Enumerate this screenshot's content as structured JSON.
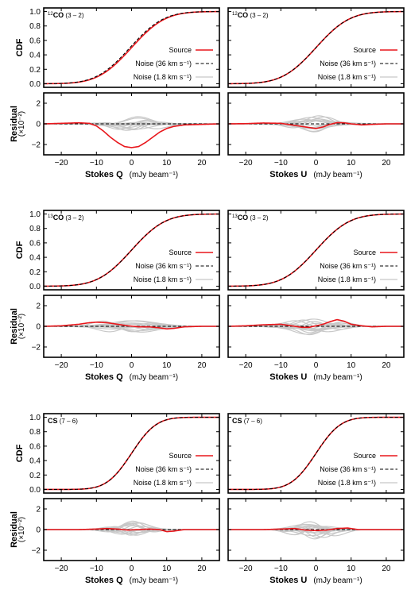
{
  "colors": {
    "source": "#e8161b",
    "noise36": "#000000",
    "noise18": "#c8c8c8"
  },
  "chart_data": [
    {
      "type": "line",
      "row": 0,
      "species_iso": "12",
      "species_name": "CO",
      "transition": "(3 – 2)",
      "ylabel_cdf": "CDF",
      "ylabel_residual": "Residual",
      "residual_unit": "(×10⁻²)",
      "legend": [
        "Source",
        "Noise (36 km s⁻¹)",
        "Noise (1.8 km s⁻¹)"
      ],
      "legend_position": "right-middle",
      "cdf_ylim": [
        -0.05,
        1.05
      ],
      "cdf_yticks": [
        "0.0",
        "0.2",
        "0.4",
        "0.6",
        "0.8",
        "1.0"
      ],
      "residual_ylim": [
        -3,
        3
      ],
      "residual_yticks": [
        "−2",
        "0",
        "2"
      ],
      "xlim": [
        -25,
        25
      ],
      "xticks": [
        "−20",
        "−10",
        "0",
        "10",
        "20"
      ],
      "panels": [
        {
          "xlabel_stokes": "Stokes Q",
          "xlabel_unit": "(mJy beam⁻¹)",
          "cdf_sigma_mJy": 7.5,
          "residual_source_x": [
            -25,
            -20,
            -15,
            -12,
            -10,
            -8,
            -6,
            -4,
            -2,
            0,
            2,
            4,
            6,
            8,
            10,
            12,
            15,
            20,
            25
          ],
          "residual_source_y": [
            0,
            0.05,
            0.1,
            0.05,
            -0.2,
            -0.7,
            -1.3,
            -1.8,
            -2.2,
            -2.3,
            -2.2,
            -1.8,
            -1.3,
            -0.8,
            -0.45,
            -0.25,
            -0.1,
            -0.05,
            0
          ]
        },
        {
          "xlabel_stokes": "Stokes U",
          "xlabel_unit": "(mJy beam⁻¹)",
          "cdf_sigma_mJy": 7.5,
          "residual_source_x": [
            -25,
            -20,
            -15,
            -10,
            -6,
            -3,
            0,
            2,
            4,
            6,
            8,
            10,
            13,
            16,
            20,
            25
          ],
          "residual_source_y": [
            0,
            0.02,
            0.08,
            0.05,
            -0.15,
            -0.3,
            -0.45,
            -0.3,
            -0.05,
            0.12,
            0.1,
            0,
            -0.1,
            -0.05,
            0,
            0
          ]
        }
      ]
    },
    {
      "type": "line",
      "row": 1,
      "species_iso": "13",
      "species_name": "CO",
      "transition": "(3 – 2)",
      "ylabel_cdf": "CDF",
      "ylabel_residual": "Residual",
      "residual_unit": "(×10⁻²)",
      "legend": [
        "Source",
        "Noise (36 km s⁻¹)",
        "Noise (1.8 km s⁻¹)"
      ],
      "legend_position": "right-middle",
      "cdf_ylim": [
        -0.05,
        1.05
      ],
      "cdf_yticks": [
        "0.0",
        "0.2",
        "0.4",
        "0.6",
        "0.8",
        "1.0"
      ],
      "residual_ylim": [
        -3,
        3
      ],
      "residual_yticks": [
        "−2",
        "0",
        "2"
      ],
      "xlim": [
        -25,
        25
      ],
      "xticks": [
        "−20",
        "−10",
        "0",
        "10",
        "20"
      ],
      "panels": [
        {
          "xlabel_stokes": "Stokes Q",
          "xlabel_unit": "(mJy beam⁻¹)",
          "cdf_sigma_mJy": 7.5,
          "residual_source_x": [
            -25,
            -20,
            -15,
            -12,
            -10,
            -7,
            -4,
            -1,
            2,
            5,
            8,
            10,
            12,
            15,
            20,
            25
          ],
          "residual_source_y": [
            0,
            0.05,
            0.2,
            0.35,
            0.4,
            0.35,
            0.2,
            0.05,
            -0.05,
            -0.05,
            -0.15,
            -0.25,
            -0.2,
            -0.05,
            0,
            0
          ]
        },
        {
          "xlabel_stokes": "Stokes U",
          "xlabel_unit": "(mJy beam⁻¹)",
          "cdf_sigma_mJy": 7.5,
          "residual_source_x": [
            -25,
            -20,
            -15,
            -10,
            -7,
            -4,
            -2,
            0,
            2,
            4,
            6,
            8,
            10,
            13,
            16,
            20,
            25
          ],
          "residual_source_y": [
            0,
            0.05,
            0.15,
            0.2,
            0.05,
            -0.1,
            -0.1,
            0.05,
            0.2,
            0.45,
            0.65,
            0.5,
            0.2,
            0.05,
            -0.05,
            0,
            0
          ]
        }
      ]
    },
    {
      "type": "line",
      "row": 2,
      "species_iso": "",
      "species_name": "CS",
      "transition": "(7 – 6)",
      "ylabel_cdf": "CDF",
      "ylabel_residual": "Residual",
      "residual_unit": "(×10⁻²)",
      "legend": [
        "Source",
        "Noise (36 km s⁻¹)",
        "Noise (1.8 km s⁻¹)"
      ],
      "legend_position": "right-middle",
      "cdf_ylim": [
        -0.05,
        1.05
      ],
      "cdf_yticks": [
        "0.0",
        "0.2",
        "0.4",
        "0.6",
        "0.8",
        "1.0"
      ],
      "residual_ylim": [
        -3,
        3
      ],
      "residual_yticks": [
        "−2",
        "0",
        "2"
      ],
      "xlim": [
        -25,
        25
      ],
      "xticks": [
        "−20",
        "−10",
        "0",
        "10",
        "20"
      ],
      "panels": [
        {
          "xlabel_stokes": "Stokes Q",
          "xlabel_unit": "(mJy beam⁻¹)",
          "cdf_sigma_mJy": 5.5,
          "residual_source_x": [
            -25,
            -15,
            -10,
            -7,
            -4,
            -1,
            2,
            5,
            8,
            10,
            12,
            15,
            20,
            25
          ],
          "residual_source_y": [
            0,
            0,
            0.05,
            0.1,
            0.05,
            -0.05,
            0,
            0.05,
            0,
            -0.2,
            -0.15,
            0,
            0,
            0
          ]
        },
        {
          "xlabel_stokes": "Stokes U",
          "xlabel_unit": "(mJy beam⁻¹)",
          "cdf_sigma_mJy": 5.5,
          "residual_source_x": [
            -25,
            -15,
            -10,
            -6,
            -3,
            0,
            3,
            6,
            9,
            12,
            15,
            20,
            25
          ],
          "residual_source_y": [
            0,
            0,
            0.05,
            0.1,
            -0.05,
            -0.1,
            -0.05,
            0.1,
            0.15,
            0,
            0,
            0,
            0
          ]
        }
      ]
    }
  ]
}
